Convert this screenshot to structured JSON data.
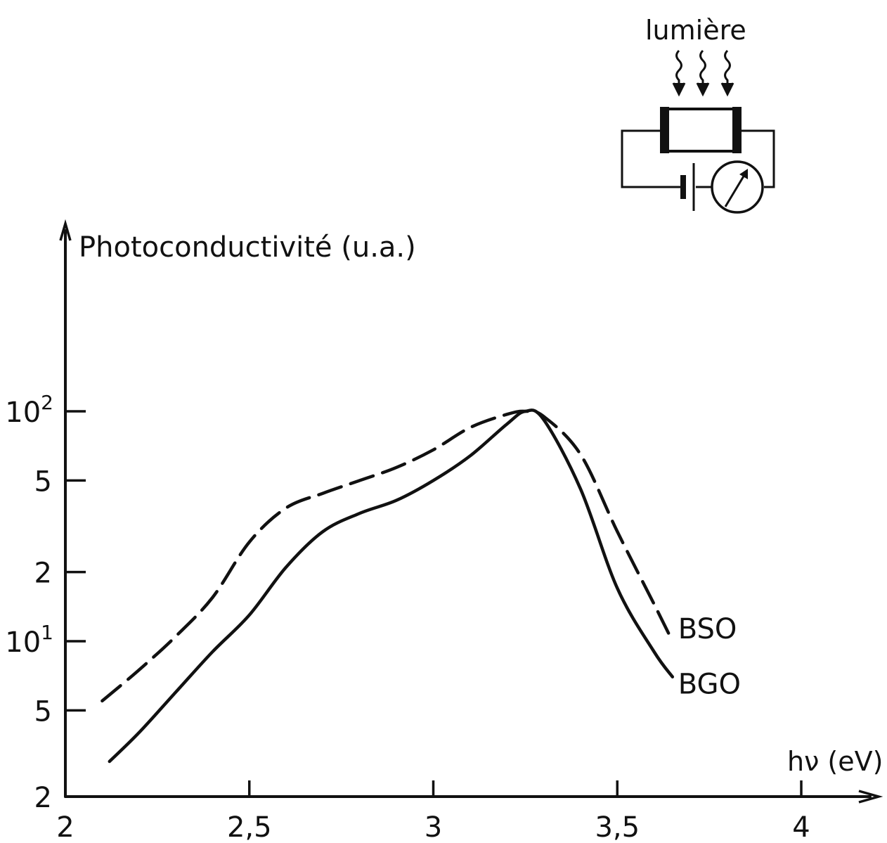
{
  "chart_data": {
    "type": "line",
    "ylabel": "Photoconductivité  (u.a.)",
    "xlabel": "hν (eV)",
    "yscale": "log",
    "xlim": [
      2,
      4.3
    ],
    "ylim": [
      2,
      500
    ],
    "x_ticks": [
      {
        "value": 2,
        "label": "2"
      },
      {
        "value": 2.5,
        "label": "2,5"
      },
      {
        "value": 3,
        "label": "3"
      },
      {
        "value": 3.5,
        "label": "3,5"
      },
      {
        "value": 4,
        "label": "4"
      }
    ],
    "y_ticks": [
      {
        "value": 2,
        "label": "2",
        "sup": ""
      },
      {
        "value": 5,
        "label": "5",
        "sup": ""
      },
      {
        "value": 10,
        "label": "10",
        "sup": "1"
      },
      {
        "value": 20,
        "label": "2",
        "sup": ""
      },
      {
        "value": 50,
        "label": "5",
        "sup": ""
      },
      {
        "value": 100,
        "label": "10",
        "sup": "2"
      }
    ],
    "grid": false,
    "series": [
      {
        "name": "BSO",
        "style": "dashed",
        "points": [
          [
            2.1,
            5.5
          ],
          [
            2.2,
            7.5
          ],
          [
            2.3,
            10.5
          ],
          [
            2.4,
            15.5
          ],
          [
            2.5,
            27
          ],
          [
            2.6,
            38
          ],
          [
            2.7,
            44
          ],
          [
            2.8,
            50
          ],
          [
            2.9,
            57
          ],
          [
            3.0,
            68
          ],
          [
            3.1,
            85
          ],
          [
            3.2,
            97
          ],
          [
            3.25,
            100
          ],
          [
            3.3,
            95
          ],
          [
            3.4,
            65
          ],
          [
            3.5,
            30
          ],
          [
            3.6,
            14.5
          ],
          [
            3.65,
            10
          ]
        ]
      },
      {
        "name": "BGO",
        "style": "solid",
        "points": [
          [
            2.12,
            3
          ],
          [
            2.2,
            4
          ],
          [
            2.3,
            6
          ],
          [
            2.4,
            9
          ],
          [
            2.5,
            13
          ],
          [
            2.6,
            21
          ],
          [
            2.7,
            30
          ],
          [
            2.8,
            36
          ],
          [
            2.9,
            41
          ],
          [
            3.0,
            50
          ],
          [
            3.1,
            64
          ],
          [
            3.2,
            88
          ],
          [
            3.25,
            100
          ],
          [
            3.3,
            92
          ],
          [
            3.4,
            46
          ],
          [
            3.5,
            17
          ],
          [
            3.6,
            9
          ],
          [
            3.65,
            7
          ]
        ]
      }
    ]
  },
  "inset": {
    "label": "lumière"
  }
}
